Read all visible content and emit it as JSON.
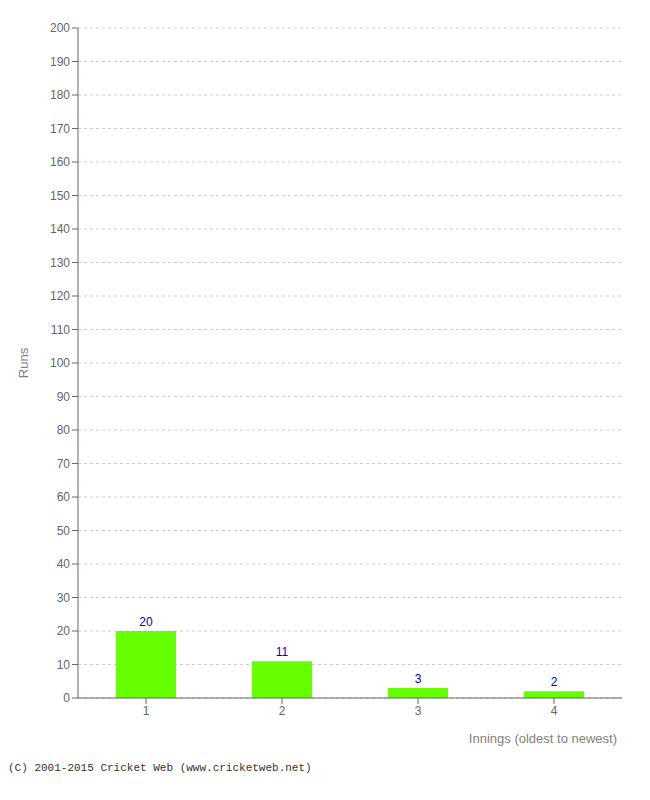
{
  "chart_data": {
    "type": "bar",
    "categories": [
      "1",
      "2",
      "3",
      "4"
    ],
    "values": [
      20,
      11,
      3,
      2
    ],
    "color": "#66ff00",
    "ylabel": "Runs",
    "xlabel": "Innings (oldest to newest)",
    "ylim": [
      0,
      200
    ],
    "yticks": [
      0,
      10,
      20,
      30,
      40,
      50,
      60,
      70,
      80,
      90,
      100,
      110,
      120,
      130,
      140,
      150,
      160,
      170,
      180,
      190,
      200
    ],
    "grid": true,
    "data_labels": true,
    "annotations": [
      "(C) 2001-2015 Cricket Web (www.cricketweb.net)"
    ]
  }
}
